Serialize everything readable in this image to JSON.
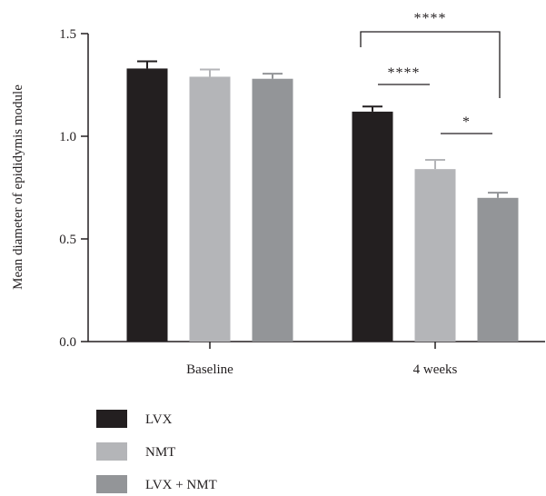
{
  "chart_data": {
    "type": "bar",
    "title": "",
    "xlabel": "",
    "ylabel": "Mean diameter of epididymis module",
    "ylim": [
      0,
      1.5
    ],
    "yticks": [
      "0.0",
      "0.5",
      "1.0",
      "1.5"
    ],
    "categories": [
      "Baseline",
      "4 weeks"
    ],
    "series": [
      {
        "name": "LVX",
        "values": [
          1.33,
          1.12
        ],
        "errors": [
          0.035,
          0.025
        ],
        "color": "#231f20"
      },
      {
        "name": "NMT",
        "values": [
          1.29,
          0.84
        ],
        "errors": [
          0.035,
          0.045
        ],
        "color": "#b4b5b8"
      },
      {
        "name": "LVX + NMT",
        "values": [
          1.28,
          0.7
        ],
        "errors": [
          0.025,
          0.025
        ],
        "color": "#939598"
      }
    ],
    "significance": [
      {
        "group": "4 weeks",
        "from": "LVX",
        "to": "NMT",
        "label": "****"
      },
      {
        "group": "4 weeks",
        "from": "NMT",
        "to": "LVX + NMT",
        "label": "*"
      },
      {
        "group": "4 weeks",
        "from": "LVX",
        "to": "LVX + NMT",
        "label": "****"
      }
    ],
    "legend_position": "bottom-left",
    "grid": false
  }
}
